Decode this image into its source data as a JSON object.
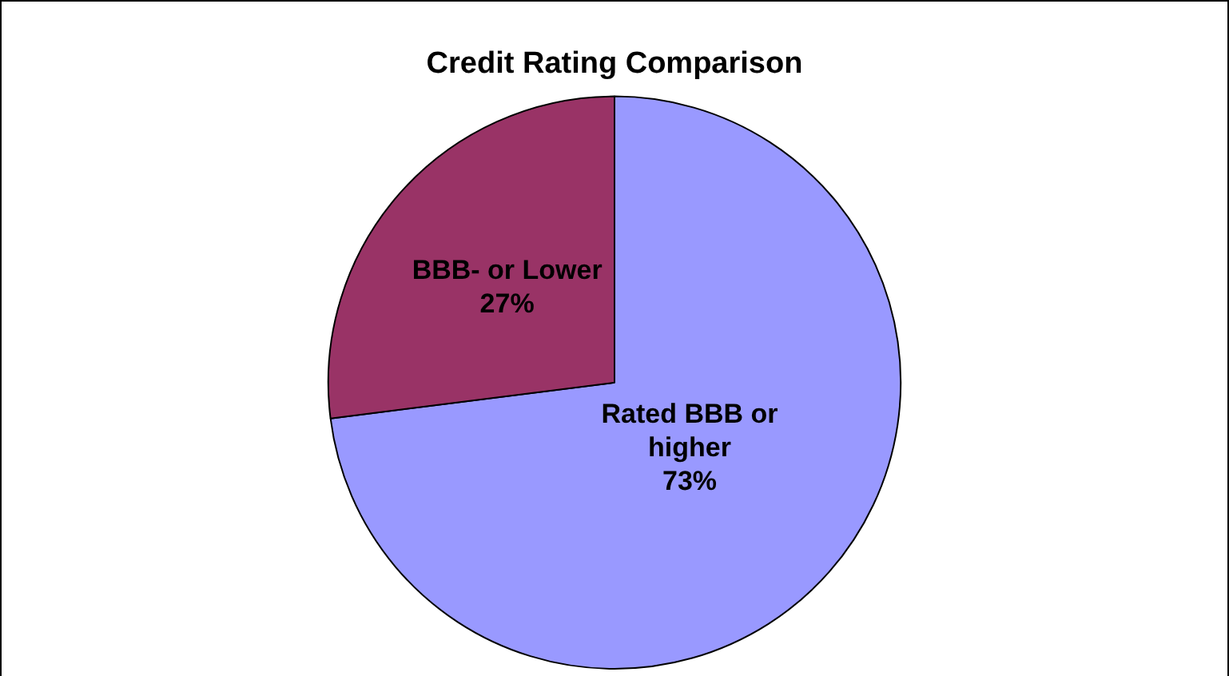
{
  "chart_data": {
    "type": "pie",
    "title": "Credit Rating Comparison",
    "categories": [
      "Rated BBB or higher",
      "BBB- or Lower"
    ],
    "values": [
      73,
      27
    ],
    "colors": [
      "#9999ff",
      "#993366"
    ],
    "value_labels": [
      "73%",
      "27%"
    ],
    "legend": false
  }
}
